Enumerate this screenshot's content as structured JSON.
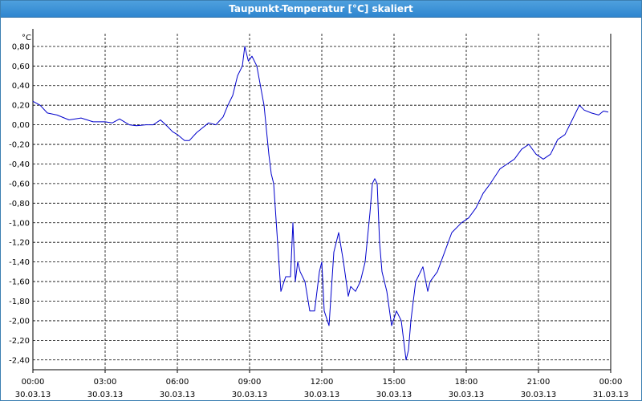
{
  "window": {
    "title": "Taupunkt-Temperatur [°C] skaliert"
  },
  "chart_data": {
    "type": "line",
    "title": "Taupunkt-Temperatur [°C] skaliert",
    "ylabel": "°C",
    "xlabel": "",
    "ylim": [
      -2.5,
      0.93
    ],
    "xlim": [
      0,
      24
    ],
    "grid": true,
    "y_ticks": [
      -2.4,
      -2.2,
      -2.0,
      -1.8,
      -1.6,
      -1.4,
      -1.2,
      -1.0,
      -0.8,
      -0.6,
      -0.4,
      -0.2,
      0.0,
      0.2,
      0.4,
      0.6,
      0.8
    ],
    "y_tick_labels": [
      "-2,40",
      "-2,20",
      "-2,00",
      "-1,80",
      "-1,60",
      "-1,40",
      "-1,20",
      "-1,00",
      "-0,80",
      "-0,60",
      "-0,40",
      "-0,20",
      "0,00",
      "0,20",
      "0,40",
      "0,60",
      "0,80"
    ],
    "x_ticks": [
      0,
      3,
      6,
      9,
      12,
      15,
      18,
      21,
      24
    ],
    "x_tick_labels": [
      [
        "00:00",
        "30.03.13"
      ],
      [
        "03:00",
        "30.03.13"
      ],
      [
        "06:00",
        "30.03.13"
      ],
      [
        "09:00",
        "30.03.13"
      ],
      [
        "12:00",
        "30.03.13"
      ],
      [
        "15:00",
        "30.03.13"
      ],
      [
        "18:00",
        "30.03.13"
      ],
      [
        "21:00",
        "30.03.13"
      ],
      [
        "00:00",
        "31.03.13"
      ]
    ],
    "colors": {
      "line": "#0000cc",
      "grid": "#000000",
      "title_bar": "#3a92d8"
    },
    "series": [
      {
        "x": [
          0.0,
          0.3,
          0.6,
          1.0,
          1.5,
          2.0,
          2.5,
          3.0,
          3.3,
          3.6,
          4.0,
          4.3,
          4.7,
          5.0,
          5.3,
          5.6,
          5.8,
          6.0,
          6.3,
          6.5,
          6.8,
          7.0,
          7.3,
          7.6,
          7.9,
          8.1,
          8.3,
          8.5,
          8.7,
          8.8,
          8.95,
          9.1,
          9.3,
          9.6,
          9.8,
          9.9,
          10.0,
          10.3,
          10.5,
          10.7,
          10.8,
          10.9,
          11.0,
          11.1,
          11.3,
          11.5,
          11.7,
          11.9,
          12.0,
          12.1,
          12.3,
          12.5,
          12.7,
          12.9,
          13.1,
          13.2,
          13.4,
          13.6,
          13.8,
          14.0,
          14.1,
          14.2,
          14.3,
          14.4,
          14.5,
          14.7,
          14.9,
          15.1,
          15.3,
          15.5,
          15.6,
          15.7,
          15.9,
          16.2,
          16.4,
          16.5,
          16.8,
          17.1,
          17.4,
          17.8,
          18.1,
          18.4,
          18.7,
          19.0,
          19.4,
          19.7,
          20.0,
          20.3,
          20.6,
          20.9,
          21.2,
          21.5,
          21.8,
          22.1,
          22.3,
          22.5,
          22.7,
          22.9,
          23.2,
          23.5,
          23.7,
          23.9
        ],
        "values": [
          0.24,
          0.2,
          0.12,
          0.1,
          0.05,
          0.07,
          0.03,
          0.03,
          0.02,
          0.06,
          0.0,
          -0.01,
          0.0,
          0.0,
          0.05,
          -0.02,
          -0.07,
          -0.1,
          -0.16,
          -0.16,
          -0.08,
          -0.04,
          0.02,
          0.0,
          0.08,
          0.2,
          0.3,
          0.5,
          0.6,
          0.8,
          0.65,
          0.7,
          0.6,
          0.2,
          -0.3,
          -0.5,
          -0.6,
          -1.7,
          -1.55,
          -1.55,
          -1.0,
          -1.6,
          -1.4,
          -1.5,
          -1.6,
          -1.9,
          -1.9,
          -1.5,
          -1.4,
          -1.9,
          -2.05,
          -1.3,
          -1.1,
          -1.4,
          -1.75,
          -1.65,
          -1.7,
          -1.6,
          -1.4,
          -0.9,
          -0.6,
          -0.55,
          -0.6,
          -1.2,
          -1.5,
          -1.7,
          -2.05,
          -1.9,
          -2.0,
          -2.4,
          -2.3,
          -2.0,
          -1.6,
          -1.45,
          -1.7,
          -1.6,
          -1.5,
          -1.3,
          -1.1,
          -1.0,
          -0.95,
          -0.85,
          -0.7,
          -0.6,
          -0.45,
          -0.4,
          -0.35,
          -0.25,
          -0.2,
          -0.3,
          -0.35,
          -0.3,
          -0.15,
          -0.1,
          0.0,
          0.1,
          0.2,
          0.15,
          0.12,
          0.1,
          0.14,
          0.13
        ]
      }
    ]
  }
}
